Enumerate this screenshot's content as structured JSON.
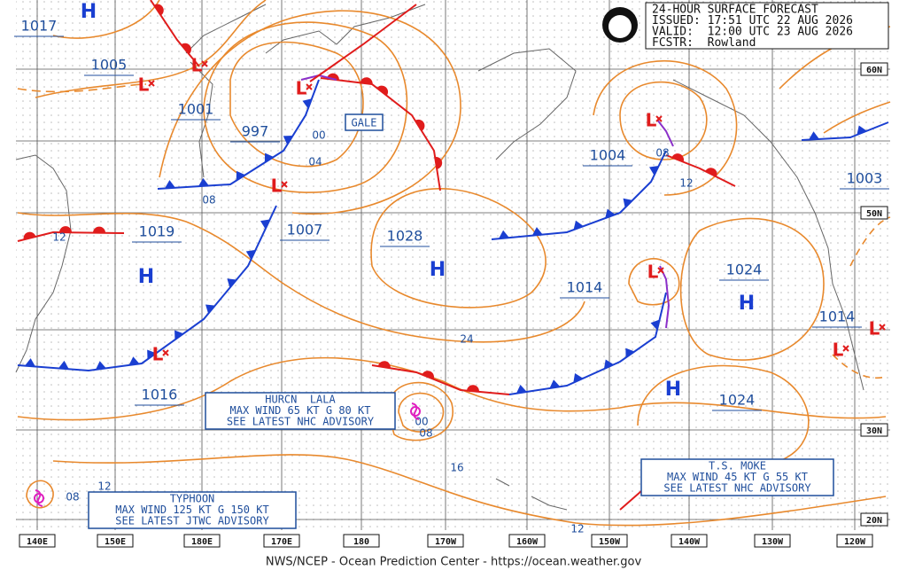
{
  "header": {
    "title": "24-HOUR SURFACE FORECAST",
    "issued": "ISSUED: 17:51 UTC 22 AUG 2026",
    "valid": "VALID:  12:00 UTC 23 AUG 2026",
    "forecaster": "FCSTR:  Rowland"
  },
  "latitude_labels": [
    "60N",
    "50N",
    "30N",
    "20N"
  ],
  "longitude_labels": [
    "140E",
    "150E",
    "180E",
    "170E",
    "180",
    "170W",
    "160W",
    "150W",
    "140W",
    "130W",
    "120W"
  ],
  "pressure_labels": [
    "1017",
    "1005",
    "1001",
    "997",
    "1019",
    "1007",
    "1028",
    "1004",
    "1003",
    "1014",
    "1024",
    "1014",
    "1016",
    "1024"
  ],
  "isobar_labels": [
    "00",
    "04",
    "08",
    "12",
    "24",
    "16",
    "08",
    "12",
    "08",
    "12",
    "00",
    "08",
    "12"
  ],
  "highs": [
    "H",
    "H",
    "H",
    "H",
    "H"
  ],
  "lows": [
    "L",
    "L",
    "L",
    "L",
    "L",
    "L",
    "L",
    "L",
    "L"
  ],
  "gale": "GALE",
  "storms": [
    {
      "name": "HURCN  LALA",
      "wind": "MAX WIND 65 KT G 80 KT",
      "advisory": "SEE LATEST NHC ADVISORY"
    },
    {
      "name": "T.S. MOKE",
      "wind": "MAX WIND 45 KT G 55 KT",
      "advisory": "SEE LATEST NHC ADVISORY"
    },
    {
      "name": "TYPHOON",
      "wind": "MAX WIND 125 KT G 150 KT",
      "advisory": "SEE LATEST JTWC ADVISORY"
    }
  ],
  "footer": "NWS/NCEP - Ocean Prediction Center - https://ocean.weather.gov"
}
